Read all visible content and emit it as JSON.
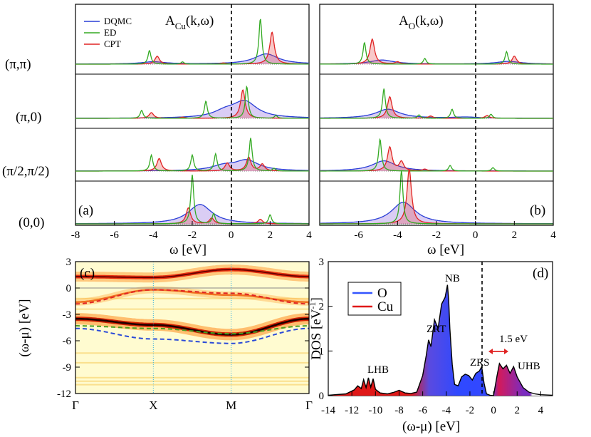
{
  "figure": {
    "panel_a": {
      "tag": "(a)",
      "title_main": "A",
      "title_sub": "Cu",
      "title_arg": "(k,ω)",
      "xlabel": "ω [eV]",
      "xticks": [
        "-8",
        "-6",
        "-4",
        "-2",
        "0",
        "2",
        "4"
      ],
      "row_labels": [
        "(π,π)",
        "(π,0)",
        "(π/2,π/2)",
        "(0,0)"
      ],
      "legend": [
        "DQMC",
        "ED",
        "CPT"
      ]
    },
    "panel_b": {
      "tag": "(b)",
      "title_main": "A",
      "title_sub": "O",
      "title_arg": "(k,ω)",
      "xlabel": "ω [eV]",
      "xticks": [
        "-6",
        "-4",
        "-2",
        "0",
        "2",
        "4"
      ]
    },
    "panel_c": {
      "tag": "(c)",
      "ylabel": "(ω-μ) [eV]",
      "yticks": [
        "3",
        "0",
        "-3",
        "-6",
        "-9",
        "-12"
      ],
      "xticks": [
        "Γ",
        "X",
        "M",
        "Γ"
      ]
    },
    "panel_d": {
      "tag": "(d)",
      "ylabel": "DOS [eV",
      "ylabel_sup": "-1",
      "ylabel_end": "]",
      "xlabel": "(ω-μ) [eV]",
      "xticks": [
        "-14",
        "-12",
        "-10",
        "-8",
        "-6",
        "-4",
        "-2",
        "0",
        "2",
        "4"
      ],
      "yticks": [
        "0",
        "1",
        "2",
        "3"
      ],
      "legend": [
        "O",
        "Cu"
      ],
      "annotations": [
        "NB",
        "ZRT",
        "LHB",
        "ZRS",
        "UHB",
        "1.5 eV"
      ]
    }
  },
  "colors": {
    "dqmc": "#2a3fd6",
    "ed": "#33aa22",
    "cpt": "#e02424",
    "o": "#3355ff",
    "cu": "#e01818"
  },
  "chart_data": [
    {
      "type": "line",
      "panel": "a",
      "title": "A_Cu(k,ω)",
      "xlabel": "ω [eV]",
      "xlim": [
        -8,
        4
      ],
      "rows": [
        {
          "k": "(π,π)",
          "DQMC": [
            [
              -4.0,
              0.1
            ],
            [
              1.8,
              0.45
            ]
          ],
          "ED": [
            [
              -4.2,
              0.6
            ],
            [
              1.5,
              2.0
            ],
            [
              -2.5,
              0.1
            ]
          ],
          "CPT": [
            [
              -3.8,
              0.35
            ],
            [
              2.1,
              1.4
            ],
            [
              -0.4,
              0.05
            ]
          ]
        },
        {
          "k": "(π,0)",
          "DQMC": [
            [
              -0.3,
              0.25
            ],
            [
              0.7,
              0.7
            ]
          ],
          "ED": [
            [
              -4.6,
              0.35
            ],
            [
              -1.3,
              0.75
            ],
            [
              0.8,
              1.4
            ],
            [
              2.3,
              0.12
            ]
          ],
          "CPT": [
            [
              -4.1,
              0.25
            ],
            [
              0.6,
              1.25
            ],
            [
              -2.5,
              0.05
            ]
          ]
        },
        {
          "k": "(π/2,π/2)",
          "DQMC": [
            [
              -0.4,
              0.2
            ],
            [
              0.8,
              0.45
            ]
          ],
          "ED": [
            [
              -4.1,
              0.7
            ],
            [
              -2.0,
              0.7
            ],
            [
              -0.8,
              0.75
            ],
            [
              1.0,
              1.45
            ],
            [
              2.2,
              0.12
            ]
          ],
          "CPT": [
            [
              -3.7,
              0.55
            ],
            [
              -0.2,
              0.35
            ],
            [
              0.9,
              0.6
            ],
            [
              1.6,
              0.3
            ]
          ]
        },
        {
          "k": "(0,0)",
          "DQMC": [
            [
              -1.6,
              0.85
            ]
          ],
          "ED": [
            [
              -2.0,
              2.15
            ],
            [
              -0.9,
              0.45
            ],
            [
              2.0,
              0.4
            ]
          ],
          "CPT": [
            [
              -2.2,
              0.7
            ],
            [
              -1.0,
              0.25
            ],
            [
              1.5,
              0.2
            ]
          ]
        }
      ]
    },
    {
      "type": "line",
      "panel": "b",
      "title": "A_O(k,ω)",
      "xlabel": "ω [eV]",
      "xlim": [
        -8,
        4
      ],
      "rows": [
        {
          "k": "(π,π)",
          "DQMC": [
            [
              -4.8,
              0.18
            ],
            [
              1.7,
              0.12
            ]
          ],
          "ED": [
            [
              -5.7,
              0.95
            ],
            [
              -2.6,
              0.25
            ],
            [
              1.6,
              0.55
            ]
          ],
          "CPT": [
            [
              -5.3,
              1.1
            ],
            [
              -4.0,
              0.1
            ],
            [
              2.0,
              0.35
            ]
          ]
        },
        {
          "k": "(π,0)",
          "DQMC": [
            [
              -4.5,
              0.4
            ],
            [
              -0.5,
              0.05
            ]
          ],
          "ED": [
            [
              -4.7,
              1.3
            ],
            [
              -1.2,
              0.4
            ],
            [
              -2.9,
              0.15
            ],
            [
              0.8,
              0.18
            ]
          ],
          "CPT": [
            [
              -4.4,
              0.95
            ],
            [
              0.6,
              0.12
            ],
            [
              -2.3,
              0.1
            ]
          ]
        },
        {
          "k": "(π/2,π/2)",
          "DQMC": [
            [
              -4.7,
              0.45
            ]
          ],
          "ED": [
            [
              -4.9,
              1.4
            ],
            [
              -1.3,
              0.25
            ],
            [
              0.9,
              0.15
            ]
          ],
          "CPT": [
            [
              -4.4,
              1.05
            ],
            [
              -3.8,
              0.4
            ],
            [
              -2.6,
              0.08
            ]
          ]
        },
        {
          "k": "(0,0)",
          "DQMC": [
            [
              -3.7,
              0.95
            ]
          ],
          "ED": [
            [
              -3.8,
              2.35
            ]
          ],
          "CPT": [
            [
              -3.4,
              2.4
            ]
          ]
        }
      ]
    },
    {
      "type": "heatmap",
      "panel": "c",
      "ylabel": "(ω-μ) [eV]",
      "ylim": [
        -12,
        3
      ],
      "x_path": [
        "Γ",
        "X",
        "M",
        "Γ"
      ],
      "bands": [
        {
          "name": "upper",
          "x": [
            0,
            1,
            2,
            3
          ],
          "y": [
            1.3,
            1.2,
            2.1,
            1.3
          ]
        },
        {
          "name": "zrs",
          "x": [
            0,
            1,
            2,
            3
          ],
          "y": [
            -1.6,
            -0.2,
            -0.8,
            -1.6
          ]
        },
        {
          "name": "nb",
          "x": [
            0,
            1,
            2,
            3
          ],
          "y": [
            -3.5,
            -4.2,
            -5.3,
            -3.5
          ]
        },
        {
          "name": "dashed_red",
          "x": [
            0,
            1,
            2,
            3
          ],
          "y": [
            -1.8,
            -0.2,
            -0.6,
            -1.8
          ]
        },
        {
          "name": "dashed_green",
          "x": [
            0,
            1,
            2,
            3
          ],
          "y": [
            -4.3,
            -4.6,
            -5.2,
            -4.3
          ]
        },
        {
          "name": "dashed_blue",
          "x": [
            0,
            1,
            2,
            3
          ],
          "y": [
            -4.6,
            -5.8,
            -6.3,
            -4.6
          ]
        }
      ]
    },
    {
      "type": "area",
      "panel": "d",
      "xlabel": "(ω-μ) [eV]",
      "ylabel": "DOS [eV^-1]",
      "xlim": [
        -14,
        5
      ],
      "ylim": [
        0,
        3
      ],
      "x": [
        -14,
        -12.5,
        -11.8,
        -11.5,
        -11.2,
        -11.0,
        -10.8,
        -10.6,
        -10.4,
        -10.2,
        -10.0,
        -9.6,
        -9.0,
        -8.5,
        -8.0,
        -7.5,
        -7.0,
        -6.5,
        -6.0,
        -5.7,
        -5.5,
        -5.3,
        -5.0,
        -4.7,
        -4.4,
        -4.1,
        -3.9,
        -3.8,
        -3.7,
        -3.5,
        -3.3,
        -3.0,
        -2.7,
        -2.4,
        -2.1,
        -1.8,
        -1.5,
        -1.2,
        -1.0,
        -0.8,
        -0.6,
        -0.3,
        0.0,
        0.3,
        0.5,
        0.8,
        1.1,
        1.4,
        1.7,
        2.0,
        2.5,
        3.0,
        3.5,
        4.0,
        5.0
      ],
      "values": [
        0.01,
        0.04,
        0.13,
        0.22,
        0.16,
        0.36,
        0.18,
        0.4,
        0.19,
        0.38,
        0.14,
        0.06,
        0.04,
        0.07,
        0.12,
        0.06,
        0.05,
        0.08,
        0.45,
        0.9,
        1.25,
        1.1,
        1.7,
        1.5,
        2.05,
        2.2,
        2.48,
        2.15,
        1.5,
        0.7,
        0.25,
        0.22,
        0.42,
        0.48,
        0.45,
        0.35,
        0.5,
        0.55,
        0.65,
        0.28,
        0.04,
        0.01,
        0.0,
        0.45,
        0.72,
        0.6,
        0.68,
        0.5,
        0.65,
        0.42,
        0.18,
        0.08,
        0.04,
        0.02,
        0.01
      ]
    }
  ]
}
